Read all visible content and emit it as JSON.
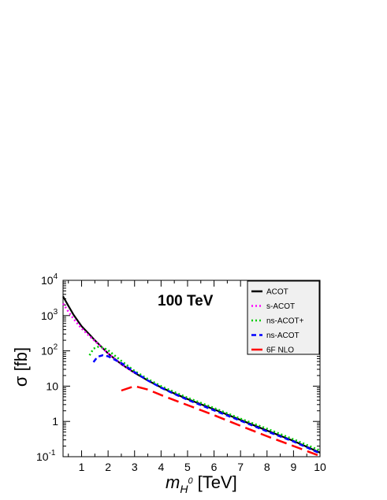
{
  "chart_data": {
    "type": "line",
    "annotation": "100 TeV",
    "xlabel_main": "m",
    "xlabel_sub": "H",
    "xlabel_sup": "0",
    "xlabel_unit": "[TeV]",
    "ylabel": "σ [fb]",
    "xlim": [
      0.3,
      10
    ],
    "ylim": [
      0.1,
      10000
    ],
    "yscale": "log",
    "x_ticks": [
      "1",
      "2",
      "3",
      "4",
      "5",
      "6",
      "7",
      "8",
      "9",
      "10"
    ],
    "y_ticks": [
      {
        "base": "10",
        "exp": "-1",
        "value": 0.1
      },
      {
        "base": "1",
        "exp": "",
        "value": 1
      },
      {
        "base": "10",
        "exp": "",
        "value": 10
      },
      {
        "base": "10",
        "exp": "2",
        "value": 100
      },
      {
        "base": "10",
        "exp": "3",
        "value": 1000
      },
      {
        "base": "10",
        "exp": "4",
        "value": 10000
      }
    ],
    "legend_position": "top-right",
    "series": [
      {
        "name": "ACOT",
        "color": "#000000",
        "dash": "solid",
        "x": [
          0.3,
          0.5,
          0.7,
          1.0,
          1.3,
          1.5,
          2.0,
          2.5,
          3.0,
          3.5,
          4.0,
          4.5,
          5.0,
          6.0,
          7.0,
          8.0,
          9.0,
          10.0
        ],
        "y": [
          3500,
          1900,
          1050,
          500,
          290,
          200,
          85,
          42,
          24,
          14.5,
          9.2,
          6.2,
          4.3,
          2.2,
          1.1,
          0.55,
          0.28,
          0.13
        ]
      },
      {
        "name": "s-ACOT",
        "color": "#ff00ff",
        "dash": "dotted",
        "x": [
          0.3,
          0.5,
          0.7,
          1.0,
          1.3,
          1.5,
          2.0,
          2.5,
          3.0
        ],
        "y": [
          2200,
          1300,
          800,
          430,
          260,
          190,
          85,
          42,
          24
        ]
      },
      {
        "name": "ns-ACOT+",
        "color": "#00cc00",
        "dash": "dotted",
        "x": [
          1.3,
          1.45,
          1.6,
          1.8,
          2.0,
          2.5,
          3.0,
          3.5,
          4.0,
          4.5,
          5.0,
          6.0,
          7.0,
          8.0,
          9.0,
          10.0
        ],
        "y": [
          75,
          115,
          130,
          125,
          105,
          52,
          27,
          16,
          10,
          6.8,
          4.7,
          2.4,
          1.2,
          0.62,
          0.31,
          0.15
        ]
      },
      {
        "name": "ns-ACOT",
        "color": "#0000ff",
        "dash": "dashed",
        "x": [
          1.45,
          1.6,
          1.8,
          2.0,
          2.5,
          3.0,
          3.5,
          4.0,
          4.5,
          5.0,
          6.0,
          7.0,
          8.0,
          9.0,
          10.0
        ],
        "y": [
          48,
          68,
          75,
          70,
          45,
          25,
          14.5,
          9.0,
          6.0,
          4.1,
          2.05,
          1.05,
          0.52,
          0.27,
          0.125
        ]
      },
      {
        "name": "6F NLO",
        "color": "#ff0000",
        "dash": "longdash",
        "x": [
          2.5,
          3.0,
          3.5,
          4.0,
          4.5,
          5.0,
          6.0,
          7.0,
          8.0,
          9.0,
          10.0
        ],
        "y": [
          7.5,
          10,
          8,
          5.6,
          4.0,
          2.9,
          1.5,
          0.75,
          0.38,
          0.2,
          0.105
        ]
      }
    ]
  }
}
